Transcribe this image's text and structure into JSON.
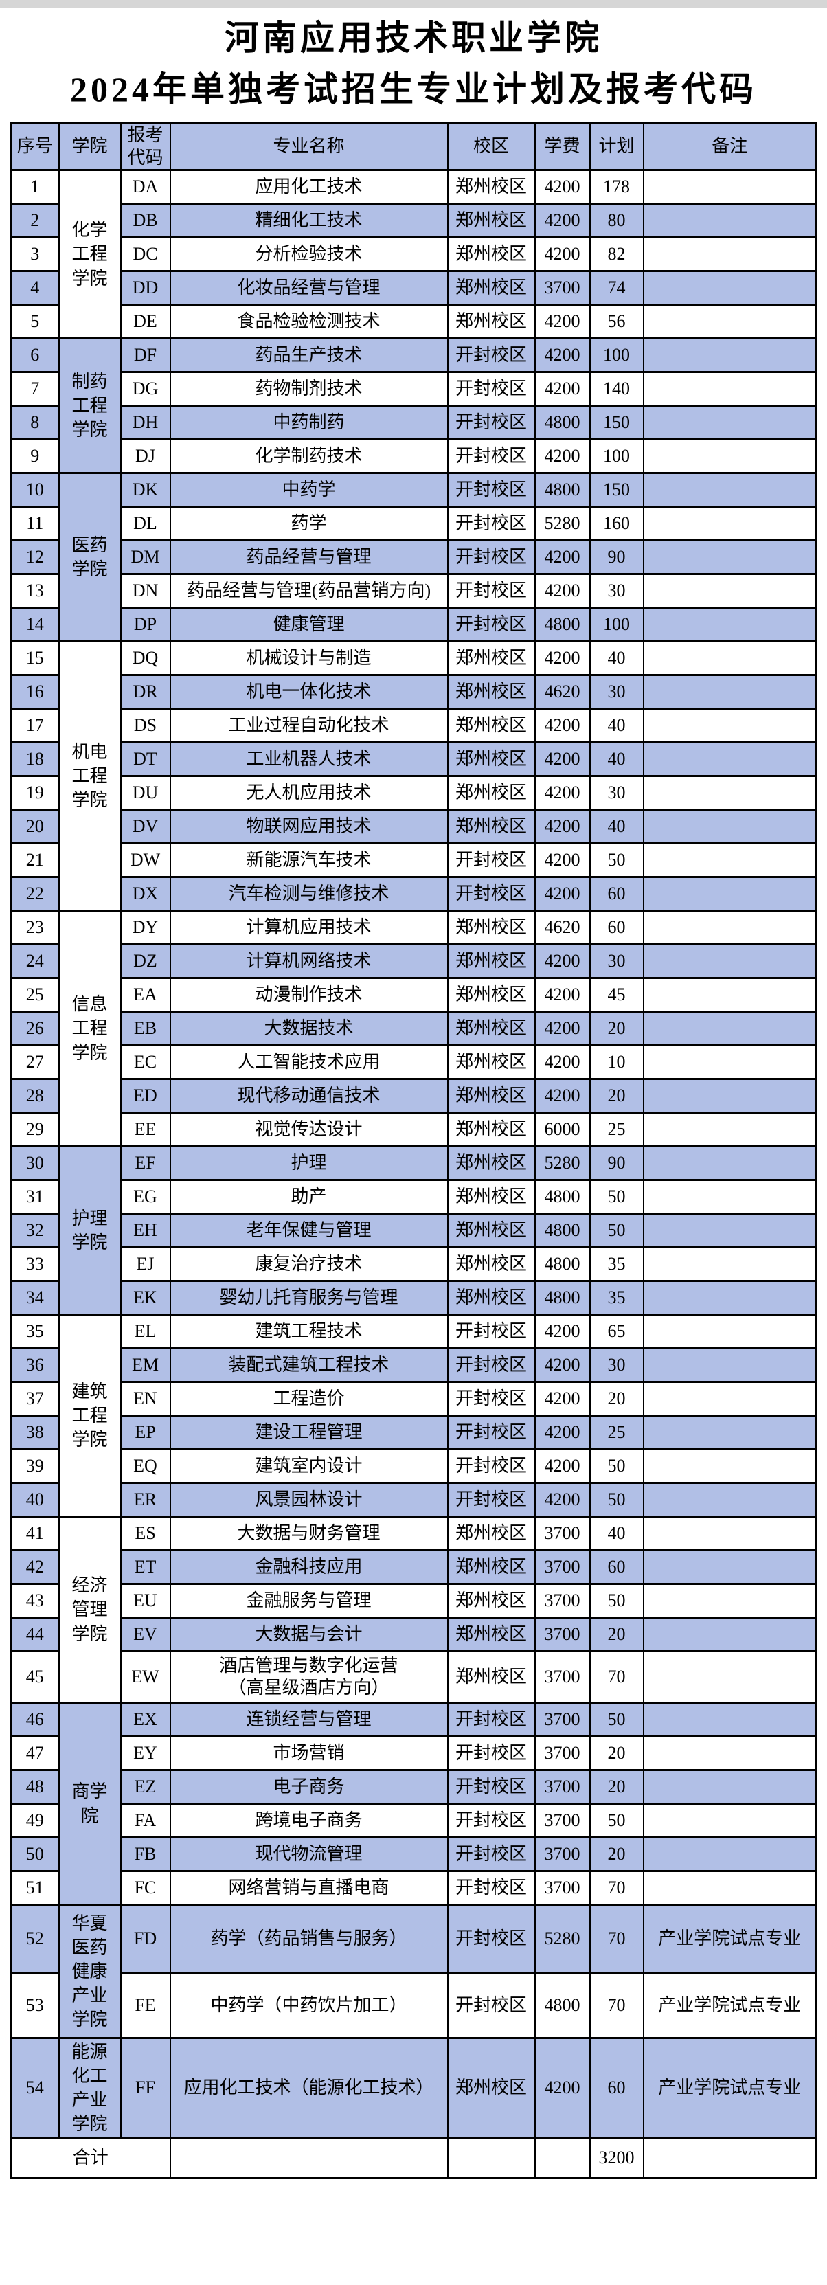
{
  "title": {
    "line1": "河南应用技术职业学院",
    "line2": "2024年单独考试招生专业计划及报考代码"
  },
  "header": {
    "seq": "序号",
    "college": "学院",
    "code": "报考代码",
    "major": "专业名称",
    "campus": "校区",
    "tuition": "学费",
    "plan": "计划",
    "remark": "备注"
  },
  "colors": {
    "stripe_blue": "#b1bfe6",
    "border_black": "#000000",
    "background_white": "#ffffff",
    "top_strip_gray": "#d6d6d6"
  },
  "rows": [
    {
      "seq": "1",
      "college": {
        "name": "化学工程学院",
        "span": 5,
        "bg": "white"
      },
      "code": "DA",
      "major": "应用化工技术",
      "campus": "郑州校区",
      "tuition": "4200",
      "plan": "178",
      "remark": ""
    },
    {
      "seq": "2",
      "code": "DB",
      "major": "精细化工技术",
      "campus": "郑州校区",
      "tuition": "4200",
      "plan": "80",
      "remark": ""
    },
    {
      "seq": "3",
      "code": "DC",
      "major": "分析检验技术",
      "campus": "郑州校区",
      "tuition": "4200",
      "plan": "82",
      "remark": ""
    },
    {
      "seq": "4",
      "code": "DD",
      "major": "化妆品经营与管理",
      "campus": "郑州校区",
      "tuition": "3700",
      "plan": "74",
      "remark": ""
    },
    {
      "seq": "5",
      "code": "DE",
      "major": "食品检验检测技术",
      "campus": "郑州校区",
      "tuition": "4200",
      "plan": "56",
      "remark": ""
    },
    {
      "seq": "6",
      "college": {
        "name": "制药工程学院",
        "span": 4,
        "bg": "white"
      },
      "code": "DF",
      "major": "药品生产技术",
      "campus": "开封校区",
      "tuition": "4200",
      "plan": "100",
      "remark": ""
    },
    {
      "seq": "7",
      "code": "DG",
      "major": "药物制剂技术",
      "campus": "开封校区",
      "tuition": "4200",
      "plan": "140",
      "remark": ""
    },
    {
      "seq": "8",
      "code": "DH",
      "major": "中药制药",
      "campus": "开封校区",
      "tuition": "4800",
      "plan": "150",
      "remark": ""
    },
    {
      "seq": "9",
      "code": "DJ",
      "major": "化学制药技术",
      "campus": "开封校区",
      "tuition": "4200",
      "plan": "100",
      "remark": ""
    },
    {
      "seq": "10",
      "college": {
        "name": "医药学院",
        "span": 5,
        "bg": "white"
      },
      "code": "DK",
      "major": "中药学",
      "campus": "开封校区",
      "tuition": "4800",
      "plan": "150",
      "remark": ""
    },
    {
      "seq": "11",
      "code": "DL",
      "major": "药学",
      "campus": "开封校区",
      "tuition": "5280",
      "plan": "160",
      "remark": ""
    },
    {
      "seq": "12",
      "code": "DM",
      "major": "药品经营与管理",
      "campus": "开封校区",
      "tuition": "4200",
      "plan": "90",
      "remark": ""
    },
    {
      "seq": "13",
      "code": "DN",
      "major": "药品经营与管理(药品营销方向)",
      "campus": "开封校区",
      "tuition": "4200",
      "plan": "30",
      "remark": ""
    },
    {
      "seq": "14",
      "code": "DP",
      "major": "健康管理",
      "campus": "开封校区",
      "tuition": "4800",
      "plan": "100",
      "remark": ""
    },
    {
      "seq": "15",
      "college": {
        "name": "机电工程学院",
        "span": 8,
        "bg": "white"
      },
      "code": "DQ",
      "major": "机械设计与制造",
      "campus": "郑州校区",
      "tuition": "4200",
      "plan": "40",
      "remark": ""
    },
    {
      "seq": "16",
      "code": "DR",
      "major": "机电一体化技术",
      "campus": "郑州校区",
      "tuition": "4620",
      "plan": "30",
      "remark": ""
    },
    {
      "seq": "17",
      "code": "DS",
      "major": "工业过程自动化技术",
      "campus": "郑州校区",
      "tuition": "4200",
      "plan": "40",
      "remark": ""
    },
    {
      "seq": "18",
      "code": "DT",
      "major": "工业机器人技术",
      "campus": "郑州校区",
      "tuition": "4200",
      "plan": "40",
      "remark": ""
    },
    {
      "seq": "19",
      "code": "DU",
      "major": "无人机应用技术",
      "campus": "郑州校区",
      "tuition": "4200",
      "plan": "30",
      "remark": ""
    },
    {
      "seq": "20",
      "code": "DV",
      "major": "物联网应用技术",
      "campus": "郑州校区",
      "tuition": "4200",
      "plan": "40",
      "remark": ""
    },
    {
      "seq": "21",
      "code": "DW",
      "major": "新能源汽车技术",
      "campus": "开封校区",
      "tuition": "4200",
      "plan": "50",
      "remark": ""
    },
    {
      "seq": "22",
      "code": "DX",
      "major": "汽车检测与维修技术",
      "campus": "开封校区",
      "tuition": "4200",
      "plan": "60",
      "remark": ""
    },
    {
      "seq": "23",
      "college": {
        "name": "信息工程学院",
        "span": 7,
        "bg": "white"
      },
      "code": "DY",
      "major": "计算机应用技术",
      "campus": "郑州校区",
      "tuition": "4620",
      "plan": "60",
      "remark": ""
    },
    {
      "seq": "24",
      "code": "DZ",
      "major": "计算机网络技术",
      "campus": "郑州校区",
      "tuition": "4200",
      "plan": "30",
      "remark": ""
    },
    {
      "seq": "25",
      "code": "EA",
      "major": "动漫制作技术",
      "campus": "郑州校区",
      "tuition": "4200",
      "plan": "45",
      "remark": ""
    },
    {
      "seq": "26",
      "code": "EB",
      "major": "大数据技术",
      "campus": "郑州校区",
      "tuition": "4200",
      "plan": "20",
      "remark": ""
    },
    {
      "seq": "27",
      "code": "EC",
      "major": "人工智能技术应用",
      "campus": "郑州校区",
      "tuition": "4200",
      "plan": "10",
      "remark": ""
    },
    {
      "seq": "28",
      "code": "ED",
      "major": "现代移动通信技术",
      "campus": "郑州校区",
      "tuition": "4200",
      "plan": "20",
      "remark": ""
    },
    {
      "seq": "29",
      "code": "EE",
      "major": "视觉传达设计",
      "campus": "郑州校区",
      "tuition": "6000",
      "plan": "25",
      "remark": ""
    },
    {
      "seq": "30",
      "college": {
        "name": "护理学院",
        "span": 5,
        "bg": "white"
      },
      "code": "EF",
      "major": "护理",
      "campus": "郑州校区",
      "tuition": "5280",
      "plan": "90",
      "remark": ""
    },
    {
      "seq": "31",
      "code": "EG",
      "major": "助产",
      "campus": "郑州校区",
      "tuition": "4800",
      "plan": "50",
      "remark": ""
    },
    {
      "seq": "32",
      "code": "EH",
      "major": "老年保健与管理",
      "campus": "郑州校区",
      "tuition": "4800",
      "plan": "50",
      "remark": ""
    },
    {
      "seq": "33",
      "code": "EJ",
      "major": "康复治疗技术",
      "campus": "郑州校区",
      "tuition": "4800",
      "plan": "35",
      "remark": ""
    },
    {
      "seq": "34",
      "code": "EK",
      "major": "婴幼儿托育服务与管理",
      "campus": "郑州校区",
      "tuition": "4800",
      "plan": "35",
      "remark": ""
    },
    {
      "seq": "35",
      "college": {
        "name": "建筑工程学院",
        "span": 6,
        "bg": "white"
      },
      "code": "EL",
      "major": "建筑工程技术",
      "campus": "开封校区",
      "tuition": "4200",
      "plan": "65",
      "remark": ""
    },
    {
      "seq": "36",
      "code": "EM",
      "major": "装配式建筑工程技术",
      "campus": "开封校区",
      "tuition": "4200",
      "plan": "30",
      "remark": ""
    },
    {
      "seq": "37",
      "code": "EN",
      "major": "工程造价",
      "campus": "开封校区",
      "tuition": "4200",
      "plan": "20",
      "remark": ""
    },
    {
      "seq": "38",
      "code": "EP",
      "major": "建设工程管理",
      "campus": "开封校区",
      "tuition": "4200",
      "plan": "25",
      "remark": ""
    },
    {
      "seq": "39",
      "code": "EQ",
      "major": "建筑室内设计",
      "campus": "开封校区",
      "tuition": "4200",
      "plan": "50",
      "remark": ""
    },
    {
      "seq": "40",
      "code": "ER",
      "major": "风景园林设计",
      "campus": "开封校区",
      "tuition": "4200",
      "plan": "50",
      "remark": ""
    },
    {
      "seq": "41",
      "college": {
        "name": "经济管理学院",
        "span": 5,
        "bg": "white"
      },
      "code": "ES",
      "major": "大数据与财务管理",
      "campus": "郑州校区",
      "tuition": "3700",
      "plan": "40",
      "remark": ""
    },
    {
      "seq": "42",
      "code": "ET",
      "major": "金融科技应用",
      "campus": "郑州校区",
      "tuition": "3700",
      "plan": "60",
      "remark": ""
    },
    {
      "seq": "43",
      "code": "EU",
      "major": "金融服务与管理",
      "campus": "郑州校区",
      "tuition": "3700",
      "plan": "50",
      "remark": ""
    },
    {
      "seq": "44",
      "code": "EV",
      "major": "大数据与会计",
      "campus": "郑州校区",
      "tuition": "3700",
      "plan": "20",
      "remark": ""
    },
    {
      "seq": "45",
      "code": "EW",
      "major": "酒店管理与数字化运营",
      "major2": "（高星级酒店方向）",
      "campus": "郑州校区",
      "tuition": "3700",
      "plan": "70",
      "remark": ""
    },
    {
      "seq": "46",
      "college": {
        "name": "商学院",
        "span": 6,
        "bg": "white"
      },
      "code": "EX",
      "major": "连锁经营与管理",
      "campus": "开封校区",
      "tuition": "3700",
      "plan": "50",
      "remark": ""
    },
    {
      "seq": "47",
      "code": "EY",
      "major": "市场营销",
      "campus": "开封校区",
      "tuition": "3700",
      "plan": "20",
      "remark": ""
    },
    {
      "seq": "48",
      "code": "EZ",
      "major": "电子商务",
      "campus": "开封校区",
      "tuition": "3700",
      "plan": "20",
      "remark": ""
    },
    {
      "seq": "49",
      "code": "FA",
      "major": "跨境电子商务",
      "campus": "开封校区",
      "tuition": "3700",
      "plan": "50",
      "remark": ""
    },
    {
      "seq": "50",
      "code": "FB",
      "major": "现代物流管理",
      "campus": "开封校区",
      "tuition": "3700",
      "plan": "20",
      "remark": ""
    },
    {
      "seq": "51",
      "code": "FC",
      "major": "网络营销与直播电商",
      "campus": "开封校区",
      "tuition": "3700",
      "plan": "70",
      "remark": ""
    },
    {
      "seq": "52",
      "college": {
        "name": "华夏医药健康产业学院",
        "span": 2,
        "bg": "white"
      },
      "code": "FD",
      "major": "药学（药品销售与服务）",
      "campus": "开封校区",
      "tuition": "5280",
      "plan": "70",
      "remark": "产业学院试点专业"
    },
    {
      "seq": "53",
      "code": "FE",
      "major": "中药学（中药饮片加工）",
      "campus": "开封校区",
      "tuition": "4800",
      "plan": "70",
      "remark": "产业学院试点专业"
    },
    {
      "seq": "54",
      "college": {
        "name": "能源化工产业学院",
        "span": 1,
        "bg": "blue"
      },
      "code": "FF",
      "major": "应用化工技术（能源化工技术）",
      "campus": "郑州校区",
      "tuition": "4200",
      "plan": "60",
      "remark": "产业学院试点专业"
    }
  ],
  "footer": {
    "label": "合计",
    "plan_total": "3200"
  }
}
